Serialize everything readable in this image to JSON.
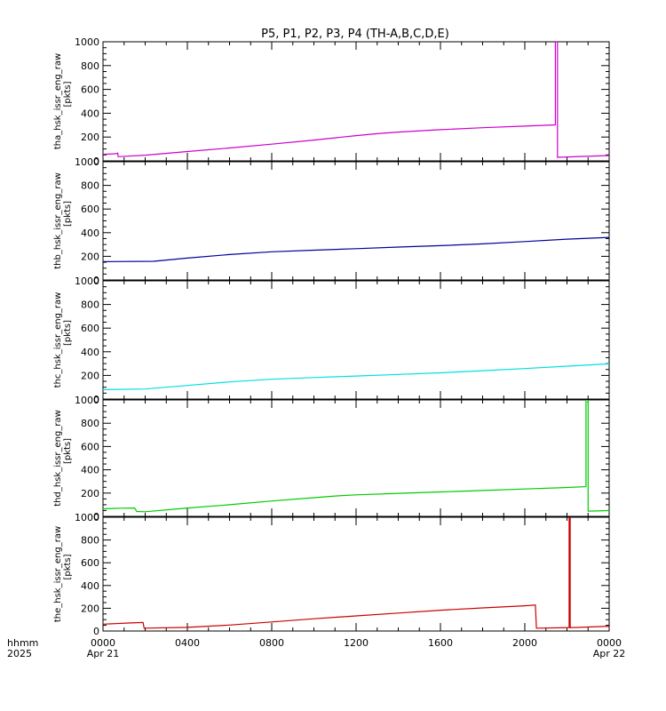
{
  "chart_data": {
    "type": "line",
    "title": "P5, P1, P2, P3, P4 (TH-A,B,C,D,E)",
    "ylim": [
      0,
      1000
    ],
    "yticks": [
      0,
      200,
      400,
      600,
      800,
      1000
    ],
    "xlim": [
      0,
      24
    ],
    "xticks": [
      0,
      4,
      8,
      12,
      16,
      20,
      24
    ],
    "xtick_labels": [
      "0000",
      "0400",
      "0800",
      "1200",
      "1600",
      "2000",
      "0000"
    ],
    "date_labels": [
      {
        "x": 0,
        "label": "Apr 21"
      },
      {
        "x": 24,
        "label": "Apr 22"
      }
    ],
    "x_axis_caption": [
      "hhmm",
      "2025"
    ],
    "grid": false,
    "panels": [
      {
        "ylabel": "tha_hsk_issr_eng_raw",
        "yunits": "[pkts]",
        "color": "#cc00cc",
        "points": [
          [
            0,
            55
          ],
          [
            0.6,
            60
          ],
          [
            0.7,
            65
          ],
          [
            0.72,
            35
          ],
          [
            2,
            48
          ],
          [
            4,
            78
          ],
          [
            6,
            108
          ],
          [
            8,
            140
          ],
          [
            10,
            175
          ],
          [
            12,
            212
          ],
          [
            13,
            228
          ],
          [
            14,
            242
          ],
          [
            16,
            262
          ],
          [
            18,
            278
          ],
          [
            20,
            292
          ],
          [
            21.45,
            302
          ],
          [
            21.45,
            1000
          ],
          [
            21.55,
            1000
          ],
          [
            21.55,
            30
          ],
          [
            24,
            45
          ]
        ]
      },
      {
        "ylabel": "thb_hsk_issr_eng_raw",
        "yunits": "[pkts]",
        "color": "#000099",
        "points": [
          [
            0,
            155
          ],
          [
            2.4,
            158
          ],
          [
            4,
            185
          ],
          [
            6,
            215
          ],
          [
            8,
            238
          ],
          [
            10,
            252
          ],
          [
            12,
            265
          ],
          [
            14,
            278
          ],
          [
            16,
            290
          ],
          [
            18,
            305
          ],
          [
            20,
            325
          ],
          [
            22,
            345
          ],
          [
            24,
            360
          ]
        ]
      },
      {
        "ylabel": "thc_hsk_issr_eng_raw",
        "yunits": "[pkts]",
        "color": "#00e0e0",
        "points": [
          [
            0,
            80
          ],
          [
            2,
            85
          ],
          [
            4,
            115
          ],
          [
            6,
            145
          ],
          [
            8,
            168
          ],
          [
            10,
            182
          ],
          [
            12,
            195
          ],
          [
            14,
            208
          ],
          [
            16,
            222
          ],
          [
            18,
            240
          ],
          [
            20,
            258
          ],
          [
            22,
            278
          ],
          [
            24,
            298
          ]
        ]
      },
      {
        "ylabel": "thd_hsk_issr_eng_raw",
        "yunits": "[pkts]",
        "color": "#00cc00",
        "points": [
          [
            0,
            65
          ],
          [
            0.9,
            70
          ],
          [
            1.5,
            72
          ],
          [
            1.6,
            42
          ],
          [
            2,
            40
          ],
          [
            4,
            72
          ],
          [
            6,
            100
          ],
          [
            8,
            132
          ],
          [
            10,
            160
          ],
          [
            11,
            175
          ],
          [
            12,
            185
          ],
          [
            14,
            198
          ],
          [
            16,
            210
          ],
          [
            18,
            222
          ],
          [
            20,
            235
          ],
          [
            22,
            248
          ],
          [
            22.9,
            255
          ],
          [
            22.9,
            1000
          ],
          [
            23,
            1000
          ],
          [
            23,
            45
          ],
          [
            24,
            50
          ]
        ]
      },
      {
        "ylabel": "the_hsk_issr_eng_raw",
        "yunits": "[pkts]",
        "color": "#cc0000",
        "points": [
          [
            0,
            60
          ],
          [
            1.2,
            70
          ],
          [
            1.9,
            75
          ],
          [
            1.95,
            25
          ],
          [
            4,
            32
          ],
          [
            6,
            52
          ],
          [
            8,
            80
          ],
          [
            10,
            108
          ],
          [
            12,
            133
          ],
          [
            14,
            158
          ],
          [
            16,
            183
          ],
          [
            18,
            203
          ],
          [
            20,
            222
          ],
          [
            20.5,
            228
          ],
          [
            20.55,
            25
          ],
          [
            22,
            30
          ],
          [
            22.1,
            30
          ],
          [
            22.1,
            1000
          ],
          [
            22.15,
            1000
          ],
          [
            22.15,
            30
          ],
          [
            24,
            42
          ]
        ]
      }
    ]
  }
}
